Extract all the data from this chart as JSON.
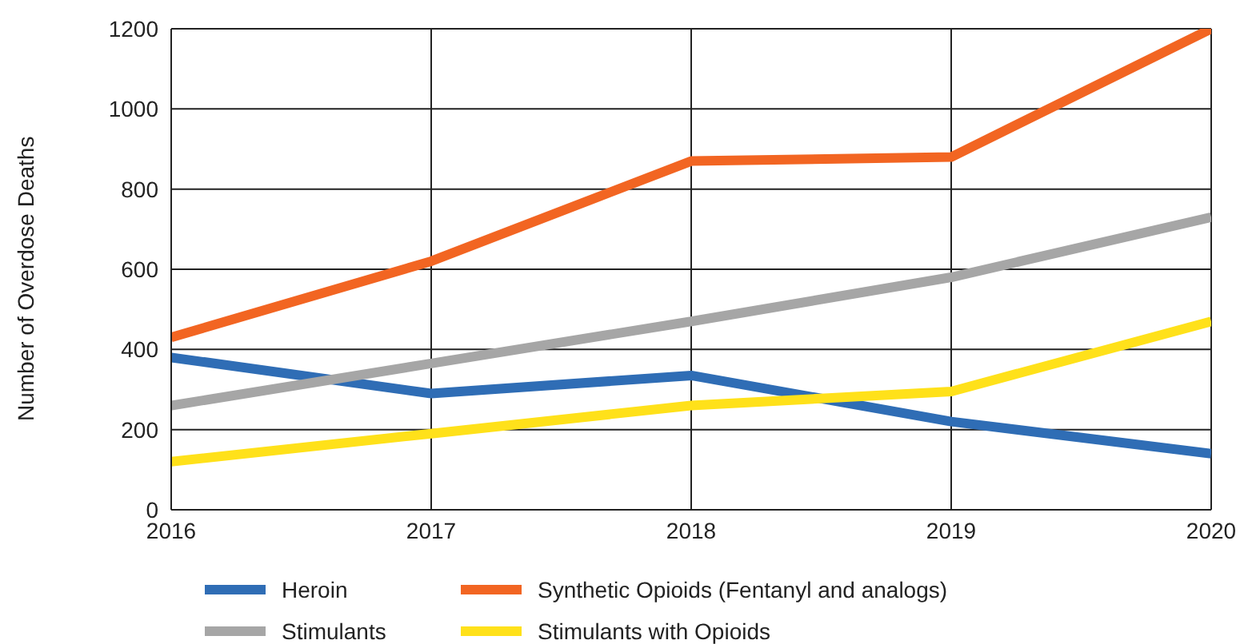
{
  "chart_data": {
    "type": "line",
    "ylabel": "Number of Overdose Deaths",
    "x": [
      2016,
      2017,
      2018,
      2019,
      2020
    ],
    "series": [
      {
        "name": "Heroin",
        "color": "#2f6db5",
        "values": [
          380,
          290,
          335,
          220,
          140
        ]
      },
      {
        "name": "Synthetic Opioids (Fentanyl and analogs)",
        "color": "#f26522",
        "values": [
          430,
          620,
          870,
          880,
          1200
        ]
      },
      {
        "name": "Stimulants",
        "color": "#a6a6a6",
        "values": [
          260,
          365,
          470,
          580,
          730
        ]
      },
      {
        "name": "Stimulants with Opioids",
        "color": "#ffe11a",
        "values": [
          120,
          190,
          260,
          295,
          470
        ]
      }
    ],
    "xlim": [
      2016,
      2020
    ],
    "xticks": [
      2016,
      2017,
      2018,
      2019,
      2020
    ],
    "ylim": [
      0,
      1200
    ],
    "yticks": [
      0,
      200,
      400,
      600,
      800,
      1000,
      1200
    ],
    "grid": true,
    "legend": "bottom",
    "marker": "none",
    "line_style": "solid"
  }
}
